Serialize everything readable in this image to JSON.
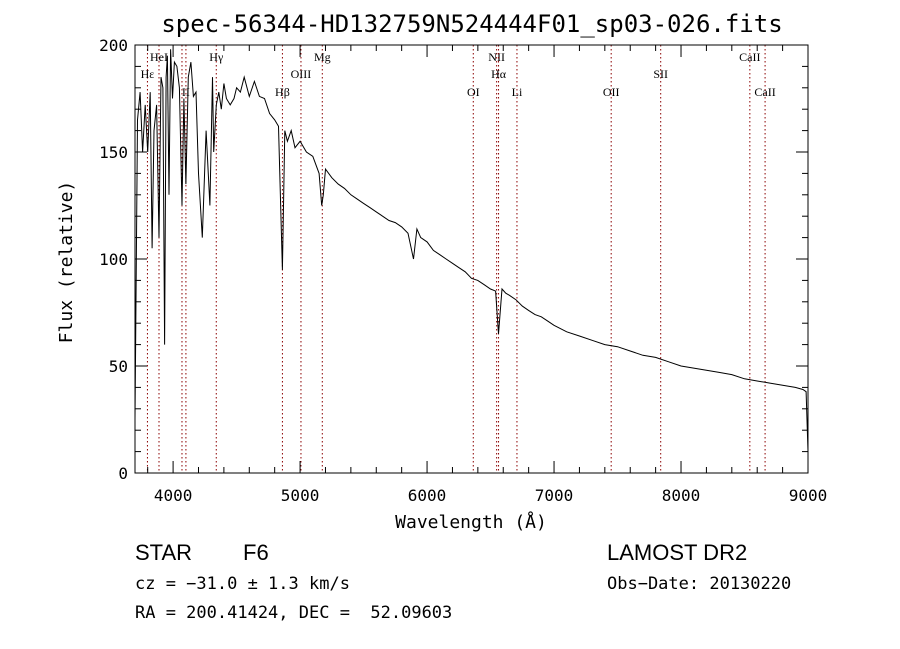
{
  "chart_data": {
    "type": "line",
    "title": "spec-56344-HD132759N524444F01_sp03-026.fits",
    "xlabel": "Wavelength (Å)",
    "ylabel": "Flux (relative)",
    "xlim": [
      3700,
      9000
    ],
    "ylim": [
      0,
      200
    ],
    "xticks": [
      "4000",
      "5000",
      "6000",
      "7000",
      "8000",
      "9000"
    ],
    "yticks": [
      "0",
      "50",
      "100",
      "150",
      "200"
    ],
    "grid": false,
    "series": [
      {
        "x": [
          3700,
          3720,
          3740,
          3760,
          3780,
          3800,
          3820,
          3835,
          3850,
          3870,
          3889,
          3905,
          3920,
          3933,
          3945,
          3955,
          3968,
          3980,
          3995,
          4010,
          4030,
          4050,
          4070,
          4085,
          4101,
          4120,
          4140,
          4160,
          4180,
          4200,
          4230,
          4260,
          4290,
          4310,
          4320,
          4340,
          4360,
          4380,
          4400,
          4420,
          4450,
          4480,
          4500,
          4530,
          4560,
          4600,
          4640,
          4680,
          4720,
          4760,
          4800,
          4830,
          4861,
          4880,
          4900,
          4930,
          4960,
          5000,
          5050,
          5100,
          5150,
          5170,
          5183,
          5200,
          5250,
          5300,
          5350,
          5400,
          5450,
          5500,
          5550,
          5600,
          5650,
          5700,
          5750,
          5800,
          5850,
          5893,
          5920,
          5950,
          6000,
          6050,
          6100,
          6150,
          6200,
          6250,
          6300,
          6350,
          6400,
          6450,
          6500,
          6540,
          6563,
          6590,
          6620,
          6650,
          6700,
          6750,
          6800,
          6850,
          6900,
          6950,
          7000,
          7100,
          7200,
          7300,
          7400,
          7500,
          7600,
          7700,
          7800,
          7900,
          8000,
          8100,
          8200,
          8300,
          8400,
          8500,
          8600,
          8700,
          8800,
          8900,
          8960,
          8985,
          9000
        ],
        "values": [
          25,
          165,
          178,
          150,
          172,
          150,
          178,
          105,
          160,
          172,
          110,
          185,
          180,
          60,
          185,
          195,
          130,
          198,
          175,
          192,
          190,
          180,
          125,
          175,
          135,
          185,
          192,
          176,
          178,
          140,
          110,
          160,
          125,
          185,
          150,
          172,
          178,
          170,
          182,
          175,
          172,
          175,
          180,
          178,
          185,
          176,
          183,
          176,
          175,
          168,
          165,
          162,
          95,
          160,
          155,
          160,
          152,
          155,
          150,
          148,
          140,
          125,
          130,
          142,
          138,
          135,
          133,
          130,
          128,
          126,
          124,
          122,
          120,
          118,
          117,
          115,
          112,
          100,
          114,
          110,
          108,
          104,
          102,
          100,
          98,
          96,
          94,
          91,
          90,
          88,
          86,
          85,
          65,
          86,
          84,
          83,
          81,
          78,
          76,
          74,
          73,
          71,
          69,
          66,
          64,
          62,
          60,
          59,
          57,
          55,
          54,
          52,
          50,
          49,
          48,
          47,
          46,
          44,
          43,
          42,
          41,
          40,
          39,
          38,
          10
        ]
      }
    ],
    "lines_top": [
      {
        "wl": 3798,
        "label": "Hε",
        "row": 1
      },
      {
        "wl": 3889,
        "label": "HeI",
        "row": 0
      },
      {
        "wl": 4070,
        "label": "",
        "row": 0
      },
      {
        "wl": 4101,
        "label": "II",
        "row": 2
      },
      {
        "wl": 4340,
        "label": "Hγ",
        "row": 0
      },
      {
        "wl": 4861,
        "label": "Hβ",
        "row": 2
      },
      {
        "wl": 5007,
        "label": "OIII",
        "row": 1
      },
      {
        "wl": 5175,
        "label": "Mg",
        "row": 0
      },
      {
        "wl": 6364,
        "label": "OI",
        "row": 2
      },
      {
        "wl": 6548,
        "label": "NII",
        "row": 0
      },
      {
        "wl": 6563,
        "label": "Hα",
        "row": 1
      },
      {
        "wl": 6708,
        "label": "Li",
        "row": 2
      },
      {
        "wl": 7450,
        "label": "OII",
        "row": 2
      },
      {
        "wl": 7840,
        "label": "SII",
        "row": 1
      },
      {
        "wl": 8542,
        "label": "CaII",
        "row": 0
      },
      {
        "wl": 8662,
        "label": "CaII",
        "row": 2
      }
    ]
  },
  "info": {
    "class_label": "STAR",
    "subclass": "F6",
    "survey": "LAMOST DR2",
    "cz": "cz = −31.0 ± 1.3 km/s",
    "obs_date": "Obs−Date: 20130220",
    "coords": "RA = 200.41424, DEC =  52.09603"
  },
  "colors": {
    "spectrum": "#000000",
    "line_markers": "#8b0000",
    "axes": "#000000"
  }
}
